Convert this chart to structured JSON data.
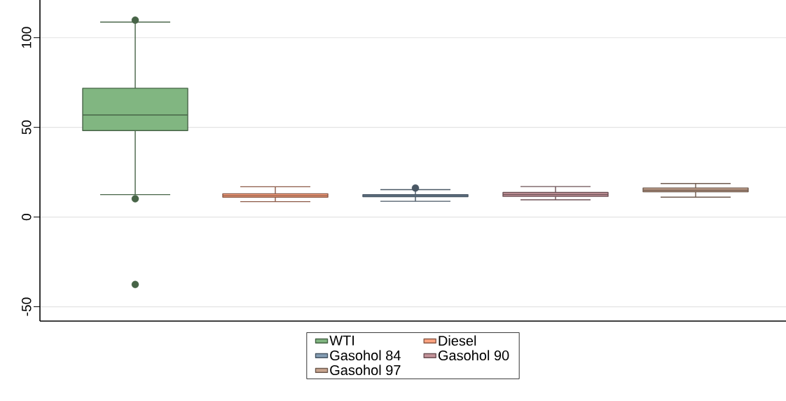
{
  "chart_data": {
    "type": "box",
    "categories": [
      null,
      null,
      null,
      null,
      null
    ],
    "series": [
      {
        "name": "WTI",
        "color": "#81b681",
        "boxes": [
          {
            "low": 12.5,
            "q1": 48.2,
            "median": 56.9,
            "q3": 71.8,
            "high": 108.7,
            "outliers": [
              109.8,
              10.2,
              -37.6
            ]
          },
          null,
          null,
          null,
          null
        ]
      },
      {
        "name": "Diesel",
        "color": "#ffa481",
        "boxes": [
          null,
          {
            "low": 8.6,
            "q1": 11.1,
            "median": 12,
            "q3": 13,
            "high": 16.9
          },
          null,
          null,
          null
        ]
      },
      {
        "name": "Gasohol 84",
        "color": "#849eb5",
        "boxes": [
          null,
          null,
          {
            "low": 8.8,
            "q1": 11.4,
            "median": 12,
            "q3": 12.5,
            "high": 15.3,
            "outliers": [
              16.2
            ]
          },
          null,
          null
        ]
      },
      {
        "name": "Gasohol 90",
        "color": "#c4939a",
        "boxes": [
          null,
          null,
          null,
          {
            "low": 9.6,
            "q1": 11.5,
            "median": 12.5,
            "q3": 13.7,
            "high": 17
          },
          null
        ]
      },
      {
        "name": "Gasohol 97",
        "color": "#c9a58f",
        "boxes": [
          null,
          null,
          null,
          null,
          {
            "low": 11.1,
            "q1": 14.1,
            "median": 15,
            "q3": 16.2,
            "high": 18.7
          }
        ]
      }
    ],
    "ylim": [
      -58,
      121
    ],
    "yticks": [
      -50,
      0,
      50,
      100
    ],
    "grid": "y",
    "legend": "bottom"
  }
}
